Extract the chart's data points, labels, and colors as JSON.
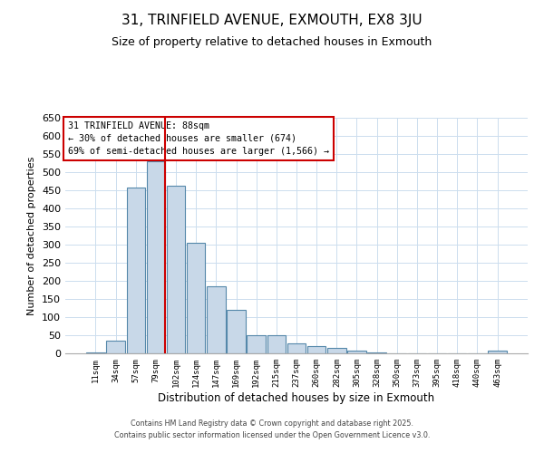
{
  "title": "31, TRINFIELD AVENUE, EXMOUTH, EX8 3JU",
  "subtitle": "Size of property relative to detached houses in Exmouth",
  "xlabel": "Distribution of detached houses by size in Exmouth",
  "ylabel": "Number of detached properties",
  "bar_labels": [
    "11sqm",
    "34sqm",
    "57sqm",
    "79sqm",
    "102sqm",
    "124sqm",
    "147sqm",
    "169sqm",
    "192sqm",
    "215sqm",
    "237sqm",
    "260sqm",
    "282sqm",
    "305sqm",
    "328sqm",
    "350sqm",
    "373sqm",
    "395sqm",
    "418sqm",
    "440sqm",
    "463sqm"
  ],
  "bar_values": [
    2,
    35,
    457,
    530,
    462,
    305,
    185,
    120,
    50,
    50,
    28,
    20,
    15,
    8,
    2,
    1,
    1,
    1,
    1,
    1,
    7
  ],
  "bar_color": "#c8d8e8",
  "bar_edge_color": "#5588aa",
  "vline_x_index": 3,
  "vline_color": "#cc0000",
  "annotation_title": "31 TRINFIELD AVENUE: 88sqm",
  "annotation_line1": "← 30% of detached houses are smaller (674)",
  "annotation_line2": "69% of semi-detached houses are larger (1,566) →",
  "annotation_box_color": "#ffffff",
  "annotation_box_edge": "#cc0000",
  "ylim": [
    0,
    650
  ],
  "yticks": [
    0,
    50,
    100,
    150,
    200,
    250,
    300,
    350,
    400,
    450,
    500,
    550,
    600,
    650
  ],
  "grid_color": "#ccddee",
  "background_color": "#ffffff",
  "footer_line1": "Contains HM Land Registry data © Crown copyright and database right 2025.",
  "footer_line2": "Contains public sector information licensed under the Open Government Licence v3.0."
}
